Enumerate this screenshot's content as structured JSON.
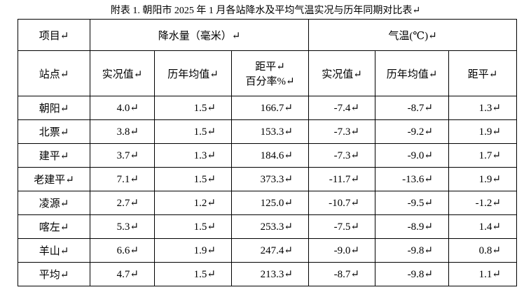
{
  "title": "附表 1. 朝阳市 2025 年 1 月各站降水及平均气温实况与历年同期对比表↵",
  "table": {
    "header": [
      [
        "项目↵",
        "降水量（毫米）↵",
        "气温(℃)↵"
      ],
      [
        "站点↵",
        "实况值↵",
        "历年均值↵",
        [
          "距平↵",
          "百分率%↵"
        ],
        "实况值↵",
        "历年均值↵",
        "距平↵"
      ]
    ],
    "rows": [
      [
        "朝阳↵",
        "4.0↵",
        "1.5↵",
        "166.7↵",
        "-7.4↵",
        "-8.7↵",
        "1.3↵"
      ],
      [
        "北票↵",
        "3.8↵",
        "1.5↵",
        "153.3↵",
        "-7.3↵",
        "-9.2↵",
        "1.9↵"
      ],
      [
        "建平↵",
        "3.7↵",
        "1.3↵",
        "184.6↵",
        "-7.3↵",
        "-9.0↵",
        "1.7↵"
      ],
      [
        "老建平↵",
        "7.1↵",
        "1.5↵",
        "373.3↵",
        "-11.7↵",
        "-13.6↵",
        "1.9↵"
      ],
      [
        "凌源↵",
        "2.7↵",
        "1.2↵",
        "125.0↵",
        "-10.7↵",
        "-9.5↵",
        "-1.2↵"
      ],
      [
        "喀左↵",
        "5.3↵",
        "1.5↵",
        "253.3↵",
        "-7.5↵",
        "-8.9↵",
        "1.4↵"
      ],
      [
        "羊山↵",
        "6.6↵",
        "1.9↵",
        "247.4↵",
        "-9.0↵",
        "-9.8↵",
        "0.8↵"
      ],
      [
        "平均↵",
        "4.7↵",
        "1.5↵",
        "213.3↵",
        "-8.7↵",
        "-9.8↵",
        "1.1↵"
      ]
    ]
  }
}
